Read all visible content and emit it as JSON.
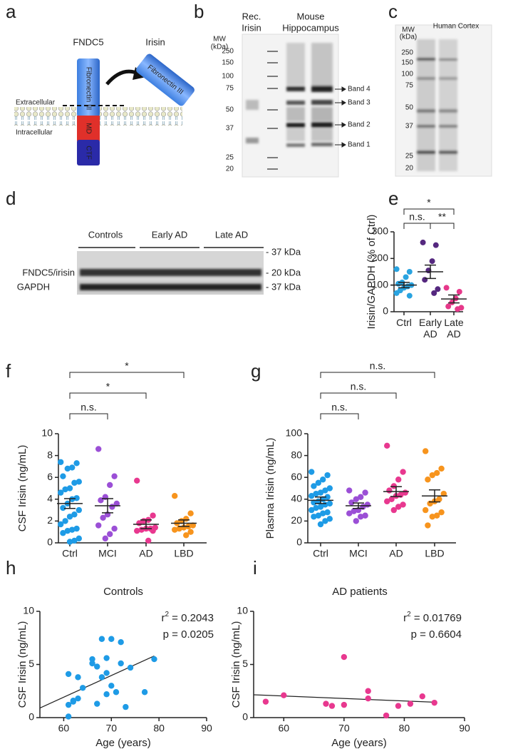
{
  "panel_labels": [
    "a",
    "b",
    "c",
    "d",
    "e",
    "f",
    "g",
    "h",
    "i"
  ],
  "diagram": {
    "fndc5": "FNDC5",
    "irisin": "Irisin",
    "extracellular": "Extracellular",
    "intracellular": "Intracellular",
    "domain_fn": "Fibronectin III",
    "domain_md": "MD",
    "domain_ctf": "CTF",
    "irisin_fn": "Fibronectin III"
  },
  "blot_b": {
    "mw": "MW",
    "kda": "(kDa)",
    "lane1": [
      "Rec.",
      "Irisin"
    ],
    "lane2": [
      "Mouse",
      "Hippocampus"
    ],
    "markers": [
      250,
      150,
      100,
      75,
      50,
      37,
      25,
      20
    ],
    "bands": [
      "Band 4",
      "Band 3",
      "Band 2",
      "Band 1"
    ]
  },
  "blot_c": {
    "mw": "MW",
    "kda": "(kDa)",
    "title": "Human Cortex",
    "markers": [
      250,
      150,
      100,
      75,
      50,
      37,
      25,
      20
    ]
  },
  "blot_d": {
    "groups": [
      "Controls",
      "Early AD",
      "Late AD"
    ],
    "rows": [
      "FNDC5/irisin",
      "GAPDH"
    ],
    "sizes": [
      "- 37 kDa",
      "- 20 kDa",
      "- 37 kDa"
    ]
  },
  "chart_data": [
    {
      "type": "dotplot",
      "ylabel": "Irisin/GAPDH (% of Ctrl)",
      "categories": [
        "Ctrl",
        "Early AD",
        "Late AD"
      ],
      "ylim": [
        0,
        300
      ],
      "yticks": [
        0,
        100,
        200,
        300
      ],
      "groups": [
        {
          "color": "#29a3e0",
          "values": [
            160,
            150,
            130,
            110,
            105,
            100,
            95,
            90,
            80,
            70,
            60
          ],
          "mean": 100,
          "sem": 10
        },
        {
          "color": "#55287f",
          "values": [
            260,
            250,
            190,
            155,
            120,
            85,
            70
          ],
          "mean": 150,
          "sem": 25
        },
        {
          "color": "#e6388a",
          "values": [
            90,
            75,
            50,
            35,
            20,
            15,
            10
          ],
          "mean": 48,
          "sem": 15
        }
      ],
      "comparisons": [
        {
          "groups": [
            0,
            1
          ],
          "label": "n.s."
        },
        {
          "groups": [
            1,
            2
          ],
          "label": "**"
        },
        {
          "groups": [
            0,
            2
          ],
          "label": "*"
        }
      ]
    },
    {
      "type": "dotplot",
      "ylabel": "CSF Irisin (ng/mL)",
      "categories": [
        "Ctrl",
        "MCI",
        "AD",
        "LBD"
      ],
      "ylim": [
        0,
        10
      ],
      "yticks": [
        0,
        2,
        4,
        6,
        8,
        10
      ],
      "groups": [
        {
          "color": "#1e9be6",
          "values": [
            7.4,
            7.3,
            6.9,
            6.8,
            6.1,
            5.6,
            5.5,
            5.0,
            4.9,
            4.6,
            4.1,
            4.0,
            3.6,
            3.2,
            3.0,
            2.6,
            2.4,
            2.0,
            1.7,
            1.3,
            1.2,
            1.1,
            0.9,
            0.4,
            0.2,
            0.1
          ],
          "mean": 3.6,
          "sem": 0.45
        },
        {
          "color": "#9b4fd6",
          "values": [
            8.6,
            6.1,
            5.3,
            4.2,
            3.9,
            3.6,
            3.3,
            2.6,
            2.3,
            1.6,
            1.3,
            0.8,
            0.4
          ],
          "mean": 3.4,
          "sem": 0.65
        },
        {
          "color": "#e8388f",
          "values": [
            5.7,
            2.5,
            2.1,
            2.0,
            1.8,
            1.4,
            1.3,
            1.3,
            1.2,
            1.1,
            1.1,
            0.2
          ],
          "mean": 1.7,
          "sem": 0.4
        },
        {
          "color": "#f7941d",
          "values": [
            4.3,
            2.7,
            2.2,
            2.0,
            1.8,
            1.6,
            1.5,
            1.4,
            1.3,
            1.2,
            1.0,
            0.7
          ],
          "mean": 1.8,
          "sem": 0.3
        }
      ],
      "comparisons": [
        {
          "groups": [
            0,
            1
          ],
          "label": "n.s."
        },
        {
          "groups": [
            0,
            2
          ],
          "label": "*"
        },
        {
          "groups": [
            0,
            3
          ],
          "label": "*"
        }
      ]
    },
    {
      "type": "dotplot",
      "ylabel": "Plasma Irisin (ng/mL)",
      "categories": [
        "Ctrl",
        "MCI",
        "AD",
        "LBD"
      ],
      "ylim": [
        0,
        100
      ],
      "yticks": [
        0,
        20,
        40,
        60,
        80,
        100
      ],
      "groups": [
        {
          "color": "#1e9be6",
          "values": [
            65,
            62,
            58,
            55,
            52,
            50,
            48,
            46,
            45,
            43,
            42,
            40,
            38,
            37,
            36,
            35,
            33,
            32,
            30,
            28,
            27,
            25,
            24,
            22,
            20,
            17
          ],
          "mean": 39,
          "sem": 3
        },
        {
          "color": "#9b4fd6",
          "values": [
            48,
            46,
            42,
            40,
            37,
            35,
            33,
            30,
            29,
            27,
            25,
            24,
            20
          ],
          "mean": 34,
          "sem": 2.5
        },
        {
          "color": "#e8388f",
          "values": [
            89,
            65,
            58,
            52,
            48,
            46,
            44,
            43,
            40,
            38,
            35,
            33,
            30
          ],
          "mean": 47,
          "sem": 4.5
        },
        {
          "color": "#f7941d",
          "values": [
            84,
            68,
            64,
            62,
            58,
            45,
            40,
            38,
            36,
            30,
            28,
            25,
            24,
            16
          ],
          "mean": 43,
          "sem": 5.5
        }
      ],
      "comparisons": [
        {
          "groups": [
            0,
            1
          ],
          "label": "n.s."
        },
        {
          "groups": [
            0,
            2
          ],
          "label": "n.s."
        },
        {
          "groups": [
            0,
            3
          ],
          "label": "n.s."
        }
      ]
    },
    {
      "type": "scatter",
      "title": "Controls",
      "xlabel": "Age (years)",
      "ylabel": "CSF Irisin (ng/mL)",
      "color": "#1e9be6",
      "xlim": [
        55,
        90
      ],
      "xticks": [
        60,
        70,
        80,
        90
      ],
      "ylim": [
        0,
        10
      ],
      "yticks": [
        0,
        5,
        10
      ],
      "x": [
        61,
        61,
        61,
        62,
        62,
        63,
        63,
        64,
        66,
        66,
        67,
        67,
        68,
        68,
        69,
        69,
        69,
        70,
        70,
        71,
        72,
        72,
        73,
        74,
        77,
        79
      ],
      "y": [
        0.1,
        1.2,
        4.1,
        1.5,
        1.6,
        1.8,
        3.8,
        2.8,
        5.1,
        5.5,
        4.8,
        1.3,
        7.4,
        3.8,
        5.6,
        4.2,
        2.2,
        7.4,
        3.0,
        2.4,
        5.1,
        7.1,
        1.0,
        4.7,
        2.4,
        5.5
      ],
      "fit": {
        "x": [
          55,
          79
        ],
        "y": [
          0.9,
          5.8
        ]
      },
      "r2": {
        "symbol": "r",
        "sup": "2",
        "text": " = 0.2043"
      },
      "p": "p = 0.0205"
    },
    {
      "type": "scatter",
      "title": "AD patients",
      "xlabel": "Age (years)",
      "ylabel": "CSF Irisin (ng/mL)",
      "color": "#e8388f",
      "xlim": [
        55,
        90
      ],
      "xticks": [
        60,
        70,
        80,
        90
      ],
      "ylim": [
        0,
        10
      ],
      "yticks": [
        0,
        5,
        10
      ],
      "x": [
        57,
        60,
        67,
        68,
        70,
        70,
        74,
        74,
        77,
        79,
        81,
        83,
        85
      ],
      "y": [
        1.5,
        2.1,
        1.3,
        1.1,
        5.7,
        1.2,
        2.5,
        1.8,
        0.2,
        1.1,
        1.3,
        2.0,
        1.4
      ],
      "fit": {
        "x": [
          55,
          85
        ],
        "y": [
          2.15,
          1.45
        ]
      },
      "r2": {
        "symbol": "r",
        "sup": "2",
        "text": " = 0.01769"
      },
      "p": "p = 0.6604"
    }
  ]
}
